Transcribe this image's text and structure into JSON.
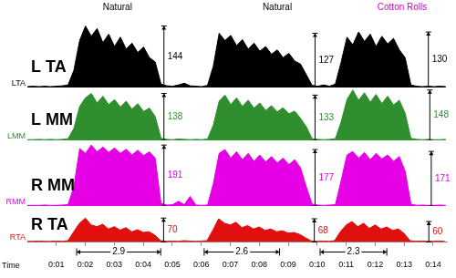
{
  "chart_data": {
    "type": "line",
    "x_label": "Time",
    "grid": false,
    "tick_labels": "x",
    "xlim": [
      0,
      14.5
    ],
    "xticks": [
      {
        "value": 1,
        "label": "0:01"
      },
      {
        "value": 2,
        "label": "0:02"
      },
      {
        "value": 3,
        "label": "0:03"
      },
      {
        "value": 4,
        "label": "0:04"
      },
      {
        "value": 5,
        "label": "0:05"
      },
      {
        "value": 6,
        "label": "0:06"
      },
      {
        "value": 7,
        "label": "0:07"
      },
      {
        "value": 8,
        "label": "0:08"
      },
      {
        "value": 9,
        "label": "0:09"
      },
      {
        "value": 10,
        "label": "0:10"
      },
      {
        "value": 11,
        "label": "0:11"
      },
      {
        "value": 12,
        "label": "0:12"
      },
      {
        "value": 13,
        "label": "0:13"
      },
      {
        "value": 14,
        "label": "0:14"
      }
    ],
    "annotations": [
      {
        "text": "Natural",
        "x": 3.1,
        "color": "#000000"
      },
      {
        "text": "Natural",
        "x": 8.6,
        "color": "#000000"
      },
      {
        "text": "Cotton Rolls",
        "x": 12.9,
        "color": "#d000d0"
      }
    ],
    "durations": [
      {
        "start": 1.7,
        "end": 4.6,
        "value": 2.9
      },
      {
        "start": 6.1,
        "end": 8.7,
        "value": 2.6
      },
      {
        "start": 10.1,
        "end": 12.4,
        "value": 2.3
      }
    ],
    "x": [
      0,
      0.2,
      0.4,
      0.6,
      0.8,
      1,
      1.2,
      1.4,
      1.6,
      1.8,
      2,
      2.2,
      2.4,
      2.6,
      2.8,
      3,
      3.2,
      3.4,
      3.6,
      3.8,
      4,
      4.2,
      4.4,
      4.6,
      4.8,
      5,
      5.2,
      5.4,
      5.6,
      5.8,
      6,
      6.2,
      6.4,
      6.6,
      6.8,
      7,
      7.2,
      7.4,
      7.6,
      7.8,
      8,
      8.2,
      8.4,
      8.6,
      8.8,
      9,
      9.2,
      9.4,
      9.6,
      9.8,
      10,
      10.2,
      10.4,
      10.6,
      10.8,
      11,
      11.2,
      11.4,
      11.6,
      11.8,
      12,
      12.2,
      12.4,
      12.6,
      12.8,
      13,
      13.2,
      13.4,
      13.6,
      13.8,
      14,
      14.2,
      14.4
    ],
    "series": [
      {
        "name": "L TA",
        "abbrev": "LTA",
        "color": "#000000",
        "ylim": [
          0,
          175
        ],
        "values": [
          2,
          3,
          2,
          3,
          2,
          3,
          4,
          6,
          40,
          110,
          144,
          120,
          138,
          105,
          125,
          96,
          118,
          90,
          104,
          82,
          95,
          70,
          60,
          8,
          4,
          3,
          6,
          10,
          4,
          3,
          2,
          5,
          50,
          127,
          110,
          122,
          98,
          112,
          90,
          104,
          85,
          96,
          78,
          88,
          70,
          80,
          62,
          55,
          30,
          5,
          3,
          6,
          3,
          8,
          60,
          118,
          100,
          130,
          108,
          125,
          96,
          120,
          102,
          115,
          88,
          70,
          6,
          3,
          2,
          3,
          2,
          3,
          2
        ],
        "peaks": [
          {
            "x": 4.7,
            "value": 144
          },
          {
            "x": 9.9,
            "value": 127
          },
          {
            "x": 13.8,
            "value": 130
          }
        ]
      },
      {
        "name": "L MM",
        "abbrev": "LMM",
        "color": "#2f8f2f",
        "ylim": [
          0,
          150
        ],
        "values": [
          2,
          2,
          3,
          2,
          3,
          2,
          3,
          5,
          35,
          100,
          125,
          138,
          110,
          130,
          105,
          120,
          98,
          115,
          92,
          108,
          85,
          95,
          70,
          6,
          3,
          2,
          4,
          3,
          2,
          3,
          2,
          4,
          45,
          115,
          133,
          105,
          125,
          100,
          118,
          95,
          110,
          88,
          102,
          84,
          96,
          78,
          86,
          65,
          40,
          5,
          3,
          2,
          3,
          5,
          55,
          120,
          148,
          118,
          140,
          112,
          135,
          108,
          130,
          104,
          118,
          80,
          6,
          3,
          2,
          3,
          2,
          2,
          3
        ],
        "peaks": [
          {
            "x": 4.7,
            "value": 138
          },
          {
            "x": 9.9,
            "value": 133
          },
          {
            "x": 13.85,
            "value": 148
          }
        ]
      },
      {
        "name": "R MM",
        "abbrev": "RMM",
        "color": "#e600e6",
        "ylim": [
          0,
          200
        ],
        "values": [
          2,
          2,
          2,
          3,
          2,
          2,
          3,
          4,
          60,
          180,
          165,
          191,
          170,
          185,
          168,
          182,
          165,
          178,
          160,
          175,
          158,
          170,
          150,
          8,
          3,
          4,
          15,
          4,
          30,
          3,
          2,
          3,
          70,
          165,
          177,
          150,
          170,
          145,
          165,
          140,
          160,
          138,
          155,
          135,
          150,
          130,
          145,
          120,
          60,
          6,
          3,
          2,
          3,
          4,
          80,
          160,
          171,
          150,
          168,
          145,
          165,
          148,
          160,
          140,
          155,
          110,
          6,
          2,
          3,
          2,
          2,
          3,
          2
        ],
        "peaks": [
          {
            "x": 4.7,
            "value": 191
          },
          {
            "x": 9.9,
            "value": 177
          },
          {
            "x": 13.9,
            "value": 171
          }
        ]
      },
      {
        "name": "R TA",
        "abbrev": "RTA",
        "color": "#e01010",
        "ylim": [
          0,
          100
        ],
        "values": [
          2,
          2,
          3,
          2,
          2,
          3,
          2,
          4,
          30,
          55,
          70,
          50,
          45,
          52,
          38,
          45,
          35,
          42,
          30,
          36,
          28,
          30,
          20,
          4,
          2,
          3,
          2,
          4,
          3,
          2,
          3,
          4,
          35,
          68,
          55,
          50,
          58,
          42,
          48,
          38,
          44,
          34,
          38,
          30,
          33,
          26,
          28,
          22,
          12,
          3,
          2,
          3,
          2,
          4,
          30,
          50,
          60,
          45,
          55,
          40,
          50,
          38,
          44,
          34,
          38,
          25,
          4,
          2,
          3,
          2,
          2,
          3,
          2
        ],
        "peaks": [
          {
            "x": 4.7,
            "value": 70
          },
          {
            "x": 9.9,
            "value": 68
          },
          {
            "x": 13.85,
            "value": 60
          }
        ]
      }
    ]
  }
}
